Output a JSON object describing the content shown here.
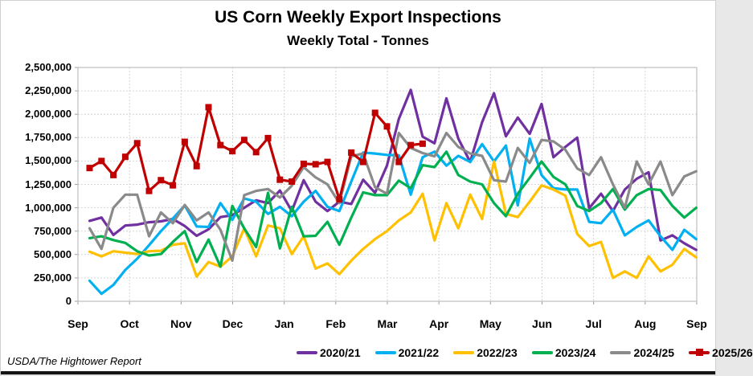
{
  "chart_data": {
    "type": "line",
    "title": "US Corn Weekly Export Inspections",
    "subtitle": "Weekly Total - Tonnes",
    "footer_credit": "USDA/The Hightower Report",
    "x_axis": {
      "tick_labels": [
        "Sep",
        "Oct",
        "Nov",
        "Dec",
        "Jan",
        "Feb",
        "Mar",
        "Apr",
        "May",
        "Jun",
        "Jul",
        "Aug",
        "Sep"
      ],
      "points_per_series": 52,
      "unit": "week"
    },
    "y_axis": {
      "min": 0,
      "max": 2500000,
      "step": 250000,
      "tick_labels": [
        "0",
        "250,000",
        "500,000",
        "750,000",
        "1,000,000",
        "1,250,000",
        "1,500,000",
        "1,750,000",
        "2,000,000",
        "2,250,000",
        "2,500,000"
      ]
    },
    "grid": true,
    "legend_position": "bottom",
    "series": [
      {
        "name": "2020/21",
        "color": "#7030A0",
        "marker": "none",
        "values": [
          860000,
          895000,
          710000,
          810000,
          820000,
          845000,
          855000,
          880000,
          805000,
          700000,
          770000,
          900000,
          920000,
          1000000,
          1080000,
          1050000,
          1185000,
          965000,
          1295000,
          1065000,
          965000,
          1065000,
          1040000,
          1300000,
          1160000,
          1450000,
          1950000,
          2260000,
          1760000,
          1690000,
          2170000,
          1740000,
          1490000,
          1915000,
          2225000,
          1765000,
          1965000,
          1790000,
          2110000,
          1540000,
          1650000,
          1750000,
          995000,
          1150000,
          965000,
          1195000,
          1310000,
          1380000,
          650000,
          705000,
          620000,
          550000
        ]
      },
      {
        "name": "2021/22",
        "color": "#00B0F0",
        "marker": "none",
        "values": [
          220000,
          80000,
          175000,
          335000,
          455000,
          600000,
          750000,
          885000,
          1025000,
          800000,
          795000,
          1050000,
          870000,
          1100000,
          1065000,
          935000,
          1010000,
          910000,
          1065000,
          1180000,
          1010000,
          965000,
          1280000,
          1590000,
          1580000,
          1565000,
          1560000,
          1140000,
          1540000,
          1600000,
          1450000,
          1555000,
          1490000,
          1680000,
          1495000,
          1665000,
          1025000,
          1740000,
          1350000,
          1210000,
          1195000,
          1195000,
          850000,
          835000,
          980000,
          705000,
          795000,
          865000,
          695000,
          550000,
          765000,
          665000
        ]
      },
      {
        "name": "2022/23",
        "color": "#FFC000",
        "marker": "none",
        "values": [
          530000,
          480000,
          535000,
          520000,
          505000,
          535000,
          540000,
          605000,
          620000,
          265000,
          420000,
          370000,
          480000,
          780000,
          480000,
          810000,
          780000,
          505000,
          695000,
          350000,
          405000,
          290000,
          435000,
          560000,
          665000,
          750000,
          865000,
          950000,
          1150000,
          650000,
          1050000,
          780000,
          1140000,
          880000,
          1495000,
          935000,
          900000,
          1065000,
          1240000,
          1195000,
          1130000,
          720000,
          590000,
          635000,
          250000,
          320000,
          250000,
          480000,
          320000,
          390000,
          560000,
          470000
        ]
      },
      {
        "name": "2023/24",
        "color": "#00B050",
        "marker": "none",
        "values": [
          675000,
          695000,
          655000,
          625000,
          535000,
          490000,
          505000,
          635000,
          750000,
          420000,
          660000,
          370000,
          1020000,
          780000,
          580000,
          1160000,
          565000,
          1010000,
          695000,
          700000,
          850000,
          605000,
          895000,
          1165000,
          1135000,
          1135000,
          1290000,
          1210000,
          1455000,
          1435000,
          1600000,
          1350000,
          1280000,
          1250000,
          1050000,
          910000,
          1150000,
          1320000,
          1495000,
          1330000,
          1250000,
          1020000,
          965000,
          1050000,
          1200000,
          980000,
          1135000,
          1200000,
          1190000,
          1020000,
          895000,
          1000000
        ]
      },
      {
        "name": "2024/25",
        "color": "#8A8A8A",
        "marker": "none",
        "values": [
          780000,
          560000,
          1000000,
          1140000,
          1140000,
          695000,
          950000,
          835000,
          1030000,
          865000,
          950000,
          765000,
          435000,
          1135000,
          1180000,
          1200000,
          1110000,
          1235000,
          1435000,
          1325000,
          1250000,
          1050000,
          1550000,
          1580000,
          1220000,
          1150000,
          1800000,
          1640000,
          1585000,
          1550000,
          1800000,
          1650000,
          1580000,
          1555000,
          1295000,
          1280000,
          1640000,
          1480000,
          1725000,
          1710000,
          1620000,
          1420000,
          1350000,
          1540000,
          1250000,
          1000000,
          1495000,
          1250000,
          1495000,
          1135000,
          1335000,
          1390000
        ]
      },
      {
        "name": "2025/26",
        "color": "#C00000",
        "marker": "square",
        "values": [
          1425000,
          1500000,
          1350000,
          1545000,
          1690000,
          1180000,
          1295000,
          1240000,
          1705000,
          1445000,
          2075000,
          1670000,
          1605000,
          1725000,
          1595000,
          1745000,
          1300000,
          1280000,
          1470000,
          1465000,
          1490000,
          1090000,
          1590000,
          1490000,
          2015000,
          1870000,
          1490000,
          1670000,
          1685000
        ]
      }
    ]
  }
}
